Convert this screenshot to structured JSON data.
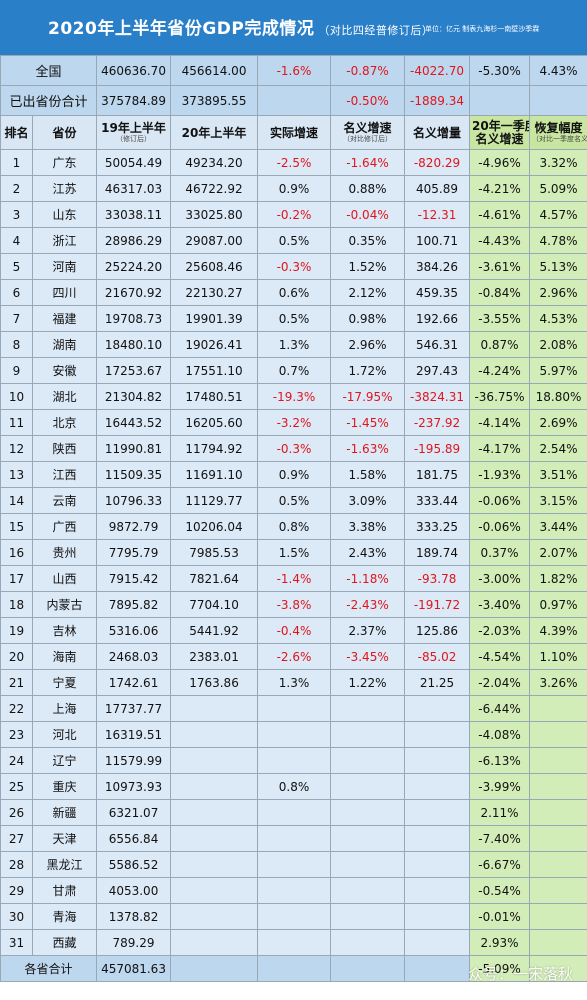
{
  "header": {
    "title": "2020年上半年省份GDP完成情况",
    "subtitle": "（对比四经普修订后）",
    "unit_note": "单位：亿元   制表九海杉一南壁沙季霖"
  },
  "summary": {
    "national": {
      "label": "全国",
      "y2019": "460636.70",
      "y2020": "456614.00",
      "real": "-1.6%",
      "nominal": "-0.87%",
      "increase": "-4022.70",
      "q1": "-5.30%",
      "recovery": "4.43%"
    },
    "released": {
      "label": "已出省份合计",
      "y2019": "375784.89",
      "y2020": "373895.55",
      "nominal": "-0.50%",
      "increase": "-1889.34"
    }
  },
  "columns": {
    "rank": "排名",
    "province": "省份",
    "y2019": "19年上半年",
    "y2019_note": "（修订后）",
    "y2020": "20年上半年",
    "real": "实际增速",
    "nominal": "名义增速",
    "nominal_note": "（对比修订后）",
    "increase": "名义增量",
    "q1_line1": "20年一季度",
    "q1_line2": "名义增速",
    "recovery": "恢复幅度",
    "recovery_note": "（对比一季度名义）"
  },
  "rows": [
    {
      "rank": "1",
      "province": "广东",
      "y2019": "50054.49",
      "y2020": "49234.20",
      "real": "-2.5%",
      "nominal": "-1.64%",
      "increase": "-820.29",
      "q1": "-4.96%",
      "recovery": "3.32%"
    },
    {
      "rank": "2",
      "province": "江苏",
      "y2019": "46317.03",
      "y2020": "46722.92",
      "real": "0.9%",
      "nominal": "0.88%",
      "increase": "405.89",
      "q1": "-4.21%",
      "recovery": "5.09%"
    },
    {
      "rank": "3",
      "province": "山东",
      "y2019": "33038.11",
      "y2020": "33025.80",
      "real": "-0.2%",
      "nominal": "-0.04%",
      "increase": "-12.31",
      "q1": "-4.61%",
      "recovery": "4.57%"
    },
    {
      "rank": "4",
      "province": "浙江",
      "y2019": "28986.29",
      "y2020": "29087.00",
      "real": "0.5%",
      "nominal": "0.35%",
      "increase": "100.71",
      "q1": "-4.43%",
      "recovery": "4.78%"
    },
    {
      "rank": "5",
      "province": "河南",
      "y2019": "25224.20",
      "y2020": "25608.46",
      "real": "-0.3%",
      "nominal": "1.52%",
      "increase": "384.26",
      "q1": "-3.61%",
      "recovery": "5.13%"
    },
    {
      "rank": "6",
      "province": "四川",
      "y2019": "21670.92",
      "y2020": "22130.27",
      "real": "0.6%",
      "nominal": "2.12%",
      "increase": "459.35",
      "q1": "-0.84%",
      "recovery": "2.96%"
    },
    {
      "rank": "7",
      "province": "福建",
      "y2019": "19708.73",
      "y2020": "19901.39",
      "real": "0.5%",
      "nominal": "0.98%",
      "increase": "192.66",
      "q1": "-3.55%",
      "recovery": "4.53%"
    },
    {
      "rank": "8",
      "province": "湖南",
      "y2019": "18480.10",
      "y2020": "19026.41",
      "real": "1.3%",
      "nominal": "2.96%",
      "increase": "546.31",
      "q1": "0.87%",
      "recovery": "2.08%"
    },
    {
      "rank": "9",
      "province": "安徽",
      "y2019": "17253.67",
      "y2020": "17551.10",
      "real": "0.7%",
      "nominal": "1.72%",
      "increase": "297.43",
      "q1": "-4.24%",
      "recovery": "5.97%"
    },
    {
      "rank": "10",
      "province": "湖北",
      "y2019": "21304.82",
      "y2020": "17480.51",
      "real": "-19.3%",
      "nominal": "-17.95%",
      "increase": "-3824.31",
      "q1": "-36.75%",
      "recovery": "18.80%"
    },
    {
      "rank": "11",
      "province": "北京",
      "y2019": "16443.52",
      "y2020": "16205.60",
      "real": "-3.2%",
      "nominal": "-1.45%",
      "increase": "-237.92",
      "q1": "-4.14%",
      "recovery": "2.69%"
    },
    {
      "rank": "12",
      "province": "陕西",
      "y2019": "11990.81",
      "y2020": "11794.92",
      "real": "-0.3%",
      "nominal": "-1.63%",
      "increase": "-195.89",
      "q1": "-4.17%",
      "recovery": "2.54%"
    },
    {
      "rank": "13",
      "province": "江西",
      "y2019": "11509.35",
      "y2020": "11691.10",
      "real": "0.9%",
      "nominal": "1.58%",
      "increase": "181.75",
      "q1": "-1.93%",
      "recovery": "3.51%"
    },
    {
      "rank": "14",
      "province": "云南",
      "y2019": "10796.33",
      "y2020": "11129.77",
      "real": "0.5%",
      "nominal": "3.09%",
      "increase": "333.44",
      "q1": "-0.06%",
      "recovery": "3.15%"
    },
    {
      "rank": "15",
      "province": "广西",
      "y2019": "9872.79",
      "y2020": "10206.04",
      "real": "0.8%",
      "nominal": "3.38%",
      "increase": "333.25",
      "q1": "-0.06%",
      "recovery": "3.44%"
    },
    {
      "rank": "16",
      "province": "贵州",
      "y2019": "7795.79",
      "y2020": "7985.53",
      "real": "1.5%",
      "nominal": "2.43%",
      "increase": "189.74",
      "q1": "0.37%",
      "recovery": "2.07%"
    },
    {
      "rank": "17",
      "province": "山西",
      "y2019": "7915.42",
      "y2020": "7821.64",
      "real": "-1.4%",
      "nominal": "-1.18%",
      "increase": "-93.78",
      "q1": "-3.00%",
      "recovery": "1.82%"
    },
    {
      "rank": "18",
      "province": "内蒙古",
      "y2019": "7895.82",
      "y2020": "7704.10",
      "real": "-3.8%",
      "nominal": "-2.43%",
      "increase": "-191.72",
      "q1": "-3.40%",
      "recovery": "0.97%"
    },
    {
      "rank": "19",
      "province": "吉林",
      "y2019": "5316.06",
      "y2020": "5441.92",
      "real": "-0.4%",
      "nominal": "2.37%",
      "increase": "125.86",
      "q1": "-2.03%",
      "recovery": "4.39%"
    },
    {
      "rank": "20",
      "province": "海南",
      "y2019": "2468.03",
      "y2020": "2383.01",
      "real": "-2.6%",
      "nominal": "-3.45%",
      "increase": "-85.02",
      "q1": "-4.54%",
      "recovery": "1.10%"
    },
    {
      "rank": "21",
      "province": "宁夏",
      "y2019": "1742.61",
      "y2020": "1763.86",
      "real": "1.3%",
      "nominal": "1.22%",
      "increase": "21.25",
      "q1": "-2.04%",
      "recovery": "3.26%"
    },
    {
      "rank": "22",
      "province": "上海",
      "y2019": "17737.77",
      "y2020": "",
      "real": "",
      "nominal": "",
      "increase": "",
      "q1": "-6.44%",
      "recovery": ""
    },
    {
      "rank": "23",
      "province": "河北",
      "y2019": "16319.51",
      "y2020": "",
      "real": "",
      "nominal": "",
      "increase": "",
      "q1": "-4.08%",
      "recovery": ""
    },
    {
      "rank": "24",
      "province": "辽宁",
      "y2019": "11579.99",
      "y2020": "",
      "real": "",
      "nominal": "",
      "increase": "",
      "q1": "-6.13%",
      "recovery": ""
    },
    {
      "rank": "25",
      "province": "重庆",
      "y2019": "10973.93",
      "y2020": "",
      "real": "0.8%",
      "nominal": "",
      "increase": "",
      "q1": "-3.99%",
      "recovery": ""
    },
    {
      "rank": "26",
      "province": "新疆",
      "y2019": "6321.07",
      "y2020": "",
      "real": "",
      "nominal": "",
      "increase": "",
      "q1": "2.11%",
      "recovery": ""
    },
    {
      "rank": "27",
      "province": "天津",
      "y2019": "6556.84",
      "y2020": "",
      "real": "",
      "nominal": "",
      "increase": "",
      "q1": "-7.40%",
      "recovery": ""
    },
    {
      "rank": "28",
      "province": "黑龙江",
      "y2019": "5586.52",
      "y2020": "",
      "real": "",
      "nominal": "",
      "increase": "",
      "q1": "-6.67%",
      "recovery": ""
    },
    {
      "rank": "29",
      "province": "甘肃",
      "y2019": "4053.00",
      "y2020": "",
      "real": "",
      "nominal": "",
      "increase": "",
      "q1": "-0.54%",
      "recovery": ""
    },
    {
      "rank": "30",
      "province": "青海",
      "y2019": "1378.82",
      "y2020": "",
      "real": "",
      "nominal": "",
      "increase": "",
      "q1": "-0.01%",
      "recovery": ""
    },
    {
      "rank": "31",
      "province": "西藏",
      "y2019": "789.29",
      "y2020": "",
      "real": "",
      "nominal": "",
      "increase": "",
      "q1": "2.93%",
      "recovery": ""
    }
  ],
  "total": {
    "label": "各省合计",
    "y2019": "457081.63",
    "q1": "-5.09%"
  },
  "watermark": "众号：一宋落秋",
  "colors": {
    "title_bg": "#2a7fc9",
    "negative": "#e0151c",
    "row_bg": "#dce9f6",
    "q1_bg": "#d3edb8"
  }
}
